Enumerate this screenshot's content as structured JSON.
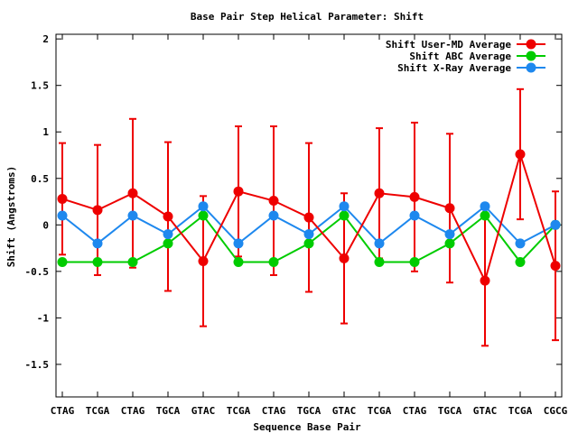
{
  "chart_data": {
    "type": "line",
    "title": "Base Pair Step Helical Parameter: Shift",
    "xlabel": "Sequence Base Pair",
    "ylabel": "Shift (Angstroms)",
    "ylim": [
      -1.85,
      2.05
    ],
    "yticks": [
      -1.5,
      -1,
      -0.5,
      0,
      0.5,
      1,
      1.5,
      2
    ],
    "ytick_labels": [
      "-1.5",
      "-1",
      "-0.5",
      "0",
      "0.5",
      "1",
      "1.5",
      "2"
    ],
    "grid": false,
    "legend_position": "top-right",
    "categories": [
      "CTAG",
      "TCGA",
      "CTAG",
      "TGCA",
      "GTAC",
      "TCGA",
      "CTAG",
      "TGCA",
      "GTAC",
      "TCGA",
      "CTAG",
      "TGCA",
      "GTAC",
      "TCGA",
      "CGCG"
    ],
    "series": [
      {
        "name": "Shift User-MD Average",
        "color": "#ee0000",
        "values": [
          0.28,
          0.16,
          0.34,
          0.09,
          -0.39,
          0.36,
          0.26,
          0.08,
          -0.36,
          0.34,
          0.3,
          0.18,
          -0.6,
          0.76,
          -0.44
        ],
        "error": [
          0.6,
          0.7,
          0.8,
          0.8,
          0.7,
          0.7,
          0.8,
          0.8,
          0.7,
          0.7,
          0.8,
          0.8,
          0.7,
          0.7,
          0.8
        ]
      },
      {
        "name": "Shift ABC Average",
        "color": "#00cc00",
        "values": [
          -0.4,
          -0.4,
          -0.4,
          -0.2,
          0.1,
          -0.4,
          -0.4,
          -0.2,
          0.1,
          -0.4,
          -0.4,
          -0.2,
          0.1,
          -0.4,
          0.0
        ]
      },
      {
        "name": "Shift X-Ray Average",
        "color": "#1e88ee",
        "values": [
          0.1,
          -0.2,
          0.1,
          -0.1,
          0.2,
          -0.2,
          0.1,
          -0.1,
          0.2,
          -0.2,
          0.1,
          -0.1,
          0.2,
          -0.2,
          0.0
        ]
      }
    ]
  }
}
